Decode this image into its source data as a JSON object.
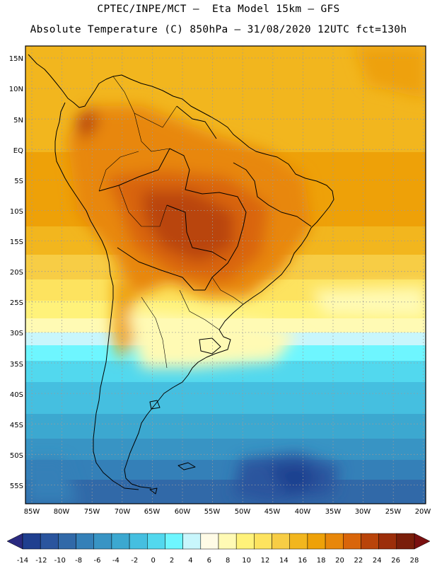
{
  "header": {
    "line1": "CPTEC/INPE/MCT –  Eta Model 15km – GFS",
    "line2": "Absolute Temperature (C) 850hPa – 31/08/2020 12UTC fct=130h"
  },
  "map": {
    "lat_labels": [
      "15N",
      "10N",
      "5N",
      "EQ",
      "5S",
      "10S",
      "15S",
      "20S",
      "25S",
      "30S",
      "35S",
      "40S",
      "45S",
      "50S",
      "55S"
    ],
    "lon_labels": [
      "85W",
      "80W",
      "75W",
      "70W",
      "65W",
      "60W",
      "55W",
      "50W",
      "45W",
      "40W",
      "35W",
      "30W",
      "25W",
      "20W"
    ]
  },
  "colorbar": {
    "labels": [
      "-14",
      "-12",
      "-10",
      "-8",
      "-6",
      "-4",
      "-2",
      "0",
      "2",
      "4",
      "6",
      "8",
      "10",
      "12",
      "14",
      "16",
      "18",
      "20",
      "22",
      "24",
      "26",
      "28"
    ],
    "colors": [
      "#1f3f8f",
      "#2a559e",
      "#3169a8",
      "#3480b8",
      "#3894c4",
      "#3ca8d0",
      "#45bfe0",
      "#52d8ee",
      "#6ef6ff",
      "#c8f6fc",
      "#fffbe6",
      "#fffab4",
      "#fff27a",
      "#fde35f",
      "#f7cd45",
      "#f2b61e",
      "#eea108",
      "#e8870a",
      "#d9650a",
      "#b9440a",
      "#9c2e0a",
      "#7a1e0a"
    ],
    "min_color": "#2a2a80",
    "max_color": "#7a1010"
  }
}
